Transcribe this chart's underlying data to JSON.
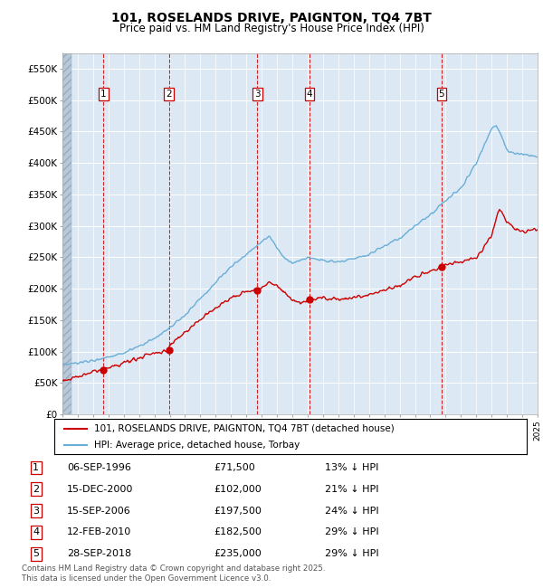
{
  "title": "101, ROSELANDS DRIVE, PAIGNTON, TQ4 7BT",
  "subtitle": "Price paid vs. HM Land Registry's House Price Index (HPI)",
  "x_start_year": 1994,
  "x_end_year": 2025,
  "y_min": 0,
  "y_max": 575000,
  "y_ticks": [
    0,
    50000,
    100000,
    150000,
    200000,
    250000,
    300000,
    350000,
    400000,
    450000,
    500000,
    550000
  ],
  "y_tick_labels": [
    "£0",
    "£50K",
    "£100K",
    "£150K",
    "£200K",
    "£250K",
    "£300K",
    "£350K",
    "£400K",
    "£450K",
    "£500K",
    "£550K"
  ],
  "background_color": "#dce9f5",
  "grid_color": "#ffffff",
  "hpi_line_color": "#6aaed6",
  "sale_line_color": "#cc0000",
  "vline_color": "#cc0000",
  "sale_dates": [
    1996.68,
    2000.96,
    2006.71,
    2010.12,
    2018.74
  ],
  "sale_prices": [
    71500,
    102000,
    197500,
    182500,
    235000
  ],
  "sale_labels": [
    "1",
    "2",
    "3",
    "4",
    "5"
  ],
  "sale_date_strings": [
    "06-SEP-1996",
    "15-DEC-2000",
    "15-SEP-2006",
    "12-FEB-2010",
    "28-SEP-2018"
  ],
  "sale_price_strings": [
    "£71,500",
    "£102,000",
    "£197,500",
    "£182,500",
    "£235,000"
  ],
  "sale_hpi_strings": [
    "13% ↓ HPI",
    "21% ↓ HPI",
    "24% ↓ HPI",
    "29% ↓ HPI",
    "29% ↓ HPI"
  ],
  "legend_line1": "101, ROSELANDS DRIVE, PAIGNTON, TQ4 7BT (detached house)",
  "legend_line2": "HPI: Average price, detached house, Torbay",
  "footer_line1": "Contains HM Land Registry data © Crown copyright and database right 2025.",
  "footer_line2": "This data is licensed under the Open Government Licence v3.0.",
  "hpi_key_points_x": [
    1994,
    1995,
    1996,
    1997,
    1998,
    1999,
    2000,
    2001,
    2002,
    2003,
    2004,
    2005,
    2006,
    2007,
    2007.5,
    2008,
    2008.5,
    2009,
    2009.5,
    2010,
    2010.5,
    2011,
    2012,
    2013,
    2014,
    2015,
    2016,
    2017,
    2018,
    2019,
    2020,
    2021,
    2022,
    2022.3,
    2022.8,
    2023,
    2023.5,
    2024,
    2025
  ],
  "hpi_key_points_y": [
    78000,
    82000,
    86000,
    92000,
    98000,
    108000,
    120000,
    138000,
    158000,
    185000,
    210000,
    235000,
    255000,
    275000,
    285000,
    265000,
    248000,
    240000,
    245000,
    250000,
    248000,
    245000,
    243000,
    248000,
    255000,
    268000,
    280000,
    300000,
    318000,
    340000,
    360000,
    400000,
    455000,
    460000,
    435000,
    420000,
    415000,
    415000,
    410000
  ],
  "sale_key_points_x": [
    1994,
    1995,
    1996,
    1996.68,
    1997,
    1998,
    1999,
    2000,
    2000.96,
    2001,
    2002,
    2003,
    2004,
    2005,
    2006,
    2006.71,
    2007,
    2007.5,
    2008,
    2008.5,
    2009,
    2009.5,
    2010,
    2010.12,
    2010.5,
    2011,
    2012,
    2013,
    2014,
    2015,
    2016,
    2017,
    2018,
    2018.74,
    2019,
    2020,
    2021,
    2022,
    2022.5,
    2023,
    2023.5,
    2024,
    2025
  ],
  "sale_key_points_y": [
    55000,
    60000,
    68000,
    71500,
    76000,
    82000,
    90000,
    98000,
    102000,
    112000,
    130000,
    152000,
    170000,
    185000,
    195000,
    197500,
    205000,
    210000,
    205000,
    195000,
    182000,
    178000,
    180000,
    182500,
    183000,
    185000,
    182000,
    185000,
    190000,
    198000,
    205000,
    218000,
    228000,
    235000,
    240000,
    242000,
    248000,
    285000,
    328000,
    305000,
    295000,
    290000,
    295000
  ]
}
